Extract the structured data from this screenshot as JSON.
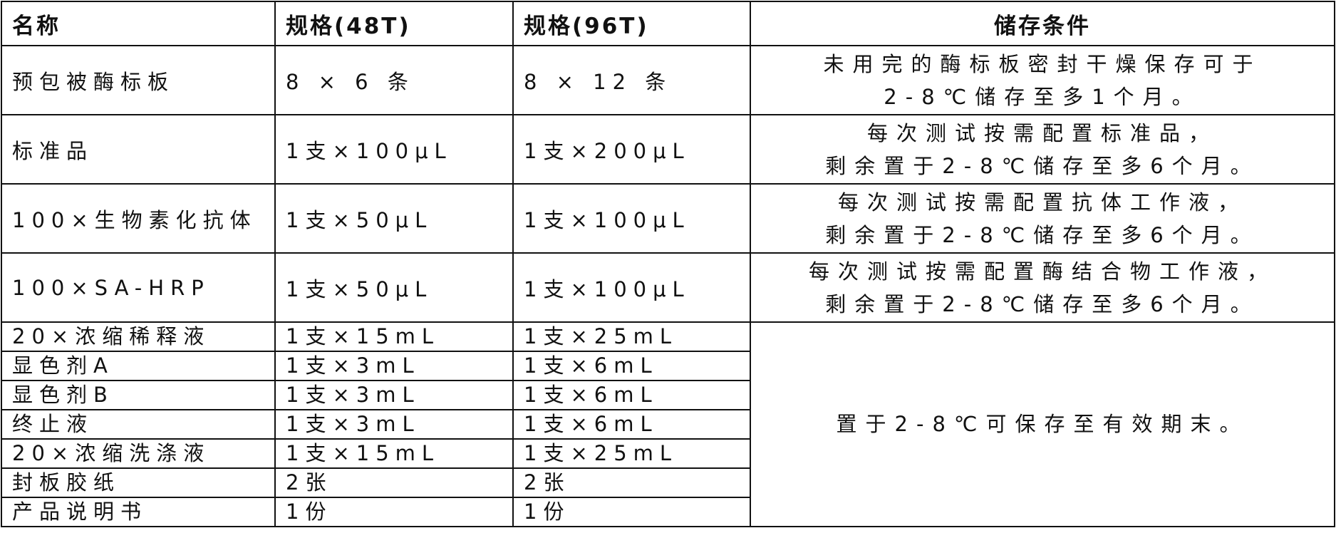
{
  "headers": [
    "名称",
    "规格(48T)",
    "规格(96T)",
    "储存条件"
  ],
  "rows": [
    {
      "name": "预包被酶标板",
      "spec48": "8 × 6 条",
      "spec96": "8 × 12 条",
      "storage": [
        "未用完的酶标板密封干燥保存可于",
        "2-8℃储存至多1个月。"
      ]
    },
    {
      "name": "标准品",
      "spec48": "1支×100μL",
      "spec96": "1支×200μL",
      "storage": [
        "每次测试按需配置标准品，",
        "剩余置于2-8℃储存至多6个月。"
      ]
    },
    {
      "name": "100×生物素化抗体",
      "spec48": "1支×50μL",
      "spec96": "1支×100μL",
      "storage": [
        "每次测试按需配置抗体工作液，",
        "剩余置于2-8℃储存至多6个月。"
      ]
    },
    {
      "name": "100×SA-HRP",
      "spec48": "1支×50μL",
      "spec96": "1支×100μL",
      "storage": [
        "每次测试按需配置酶结合物工作液，",
        "剩余置于2-8℃储存至多6个月。"
      ]
    },
    {
      "name": "20×浓缩稀释液",
      "spec48": "1支×15mL",
      "spec96": "1支×25mL"
    },
    {
      "name": "显色剂A",
      "spec48": "1支×3mL",
      "spec96": "1支×6mL"
    },
    {
      "name": "显色剂B",
      "spec48": "1支×3mL",
      "spec96": "1支×6mL"
    },
    {
      "name": "终止液",
      "spec48": "1支×3mL",
      "spec96": "1支×6mL"
    },
    {
      "name": "20×浓缩洗涤液",
      "spec48": "1支×15mL",
      "spec96": "1支×25mL"
    },
    {
      "name": "封板胶纸",
      "spec48": "2张",
      "spec96": "2张"
    },
    {
      "name": "产品说明书",
      "spec48": "1份",
      "spec96": "1份"
    }
  ],
  "shared_storage": "置于2-8℃可保存至有效期末。"
}
